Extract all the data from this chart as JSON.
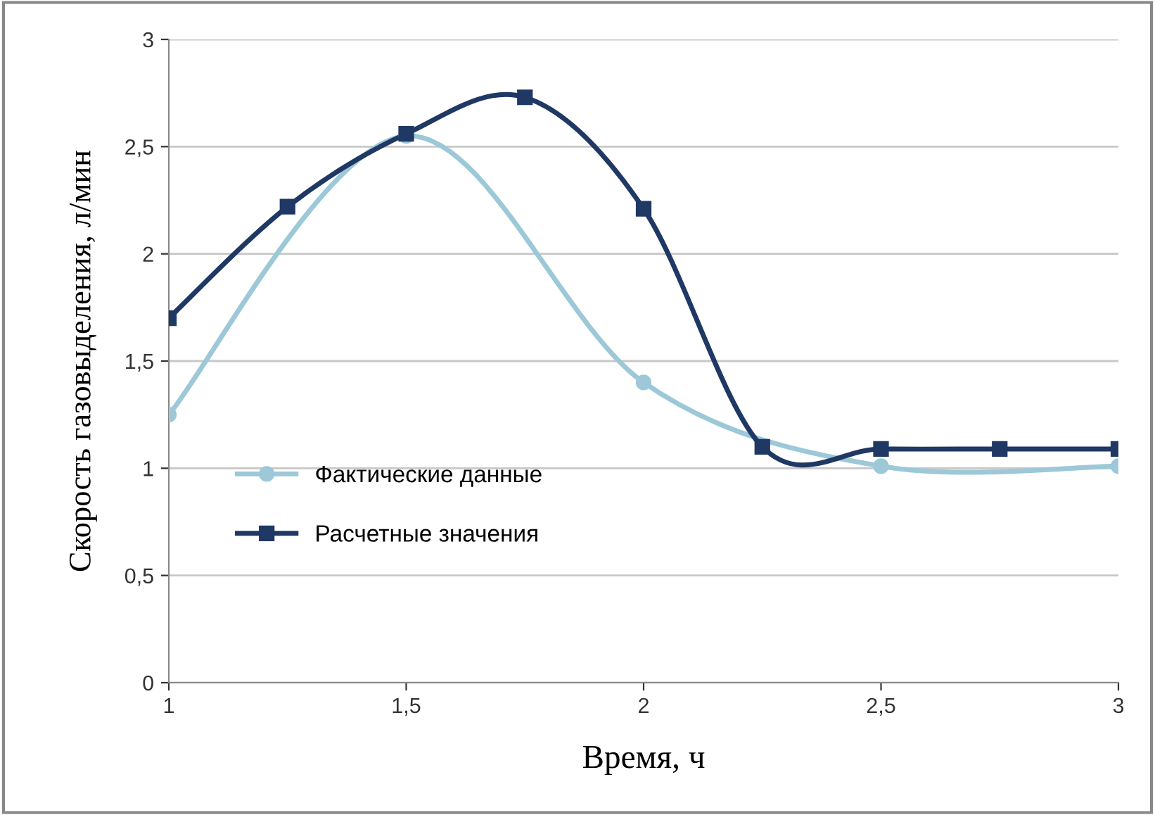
{
  "chart_data": {
    "type": "line",
    "xlabel": "Время, ч",
    "ylabel": "Скорость газовыделения, л/мин",
    "series": [
      {
        "name": "Фактические данные",
        "color": "#9cc8d8",
        "marker": "circle",
        "x": [
          1,
          1.5,
          2,
          2.5,
          3
        ],
        "values": [
          1.25,
          2.55,
          1.4,
          1.01,
          1.01
        ]
      },
      {
        "name": "Расчетные значения",
        "color": "#1f3864",
        "marker": "square",
        "x": [
          1,
          1.25,
          1.5,
          1.75,
          2,
          2.25,
          2.5,
          2.75,
          3
        ],
        "values": [
          1.7,
          2.22,
          2.56,
          2.73,
          2.21,
          1.1,
          1.09,
          1.09,
          1.09
        ]
      }
    ],
    "xlim": [
      1,
      3
    ],
    "xticks": [
      1,
      {
        "value": 1.5,
        "label": "1,5"
      },
      2,
      {
        "value": 2.5,
        "label": "2,5"
      },
      3
    ],
    "ylim": [
      0,
      3
    ],
    "yticks": [
      0,
      {
        "value": 0.5,
        "label": "0,5"
      },
      1,
      {
        "value": 1.5,
        "label": "1,5"
      },
      2,
      {
        "value": 2.5,
        "label": "2,5"
      },
      3
    ],
    "grid": "y",
    "legend": "center left"
  }
}
